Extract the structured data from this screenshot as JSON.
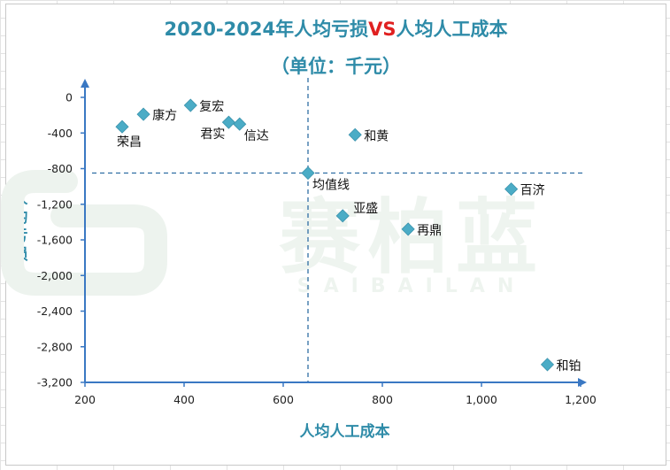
{
  "chart_data": {
    "type": "scatter",
    "title_parts": [
      "2020-2024年人均亏损",
      "VS",
      "人均人工成本"
    ],
    "subtitle": "（单位：千元）",
    "xlabel": "人均人工成本",
    "ylabel": "人均亏损",
    "xlim": [
      200,
      1200
    ],
    "ylim": [
      -3200,
      0
    ],
    "xticks": [
      200,
      400,
      600,
      800,
      1000,
      1200
    ],
    "xtick_labels": [
      "200",
      "400",
      "600",
      "800",
      "1,000",
      "1,200"
    ],
    "yticks": [
      0,
      -400,
      -800,
      -1200,
      -1600,
      -2000,
      -2400,
      -2800,
      -3200
    ],
    "ytick_labels": [
      "0",
      "-400",
      "-800",
      "-1,200",
      "-1,600",
      "-2,000",
      "-2,400",
      "-2,800",
      "-3,200"
    ],
    "marker_color": "#4bacc6",
    "reference_lines": {
      "x": 650,
      "y": -850
    },
    "points": [
      {
        "name": "荣昌",
        "x": 275,
        "y": -330,
        "label_pos": "below"
      },
      {
        "name": "康方",
        "x": 318,
        "y": -190,
        "label_pos": "right"
      },
      {
        "name": "复宏",
        "x": 413,
        "y": -90,
        "label_pos": "right"
      },
      {
        "name": "君实",
        "x": 490,
        "y": -280,
        "label_pos": "left-below"
      },
      {
        "name": "信达",
        "x": 512,
        "y": -300,
        "label_pos": "right-below"
      },
      {
        "name": "均值线",
        "x": 650,
        "y": -850,
        "label_pos": "right-below"
      },
      {
        "name": "和黄",
        "x": 745,
        "y": -420,
        "label_pos": "right"
      },
      {
        "name": "亚盛",
        "x": 720,
        "y": -1330,
        "label_pos": "right-above"
      },
      {
        "name": "再鼎",
        "x": 852,
        "y": -1480,
        "label_pos": "right"
      },
      {
        "name": "百济",
        "x": 1060,
        "y": -1030,
        "label_pos": "right"
      },
      {
        "name": "和铂",
        "x": 1133,
        "y": -3000,
        "label_pos": "right"
      }
    ]
  },
  "watermark": {
    "text": "赛柏蓝",
    "subtext": "SAIBAILAN"
  }
}
